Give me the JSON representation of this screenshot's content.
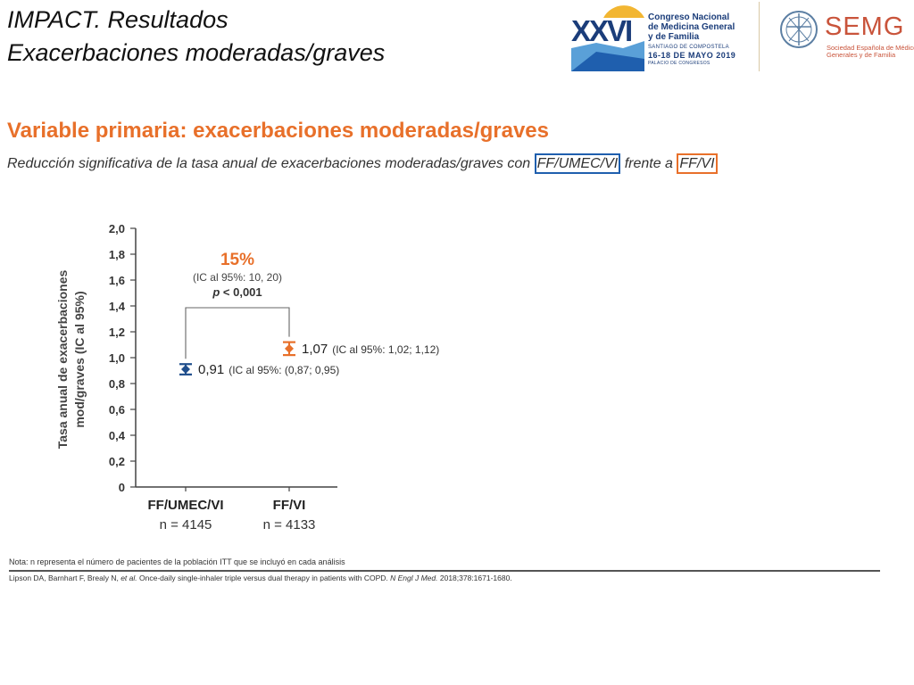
{
  "header": {
    "title_line1": "IMPACT. Resultados",
    "title_line2": "Exacerbaciones moderadas/graves"
  },
  "logos": {
    "congress": {
      "numeral": "XXVI",
      "name_line1": "Congreso Nacional",
      "name_line2": "de Medicina General",
      "name_line3": "y de Familia",
      "city": "SANTIAGO DE COMPOSTELA",
      "dates": "16-18 DE MAYO 2019",
      "venue": "PALACIO DE CONGRESOS"
    },
    "semg": {
      "mark": "SEMG",
      "subtitle_line1": "Sociedad Española de Médicos",
      "subtitle_line2": "Generales y de Familia"
    }
  },
  "section_heading": "Variable primaria: exacerbaciones moderadas/graves",
  "subtitle": {
    "prefix": "Reducción significativa de la tasa anual de exacerbaciones moderadas/graves con ",
    "highlight1": "FF/UMEC/VI",
    "middle": " frente a ",
    "highlight2": "FF/VI"
  },
  "chart_data": {
    "type": "scatter",
    "ylabel_line1": "Tasa anual de exacerbaciones",
    "ylabel_line2": "mod/graves (IC al 95%)",
    "ylim": [
      0,
      2.0
    ],
    "yticks": [
      "0",
      "0,2",
      "0,4",
      "0,6",
      "0,8",
      "1,0",
      "1,2",
      "1,4",
      "1,6",
      "1,8",
      "2,0"
    ],
    "categories": [
      "FF/UMEC/VI",
      "FF/VI"
    ],
    "n_labels": [
      "n = 4145",
      "n = 4133"
    ],
    "points": [
      {
        "value": 0.91,
        "ci_low": 0.87,
        "ci_high": 0.95,
        "value_label": "0,91",
        "ci_label": "(IC al 95%: (0,87; 0,95)",
        "color": "#1f4e8c"
      },
      {
        "value": 1.07,
        "ci_low": 1.02,
        "ci_high": 1.12,
        "value_label": "1,07",
        "ci_label": "(IC al 95%: 1,02; 1,12)",
        "color": "#e8702a"
      }
    ],
    "annotation": {
      "percent": "15%",
      "ci": "(IC al 95%:  10, 20)",
      "p_label": "p",
      "p_value": " < 0,001"
    },
    "grid": false
  },
  "footer": {
    "note": "Nota: n representa el número de pacientes de la población ITT que se incluyó en cada análisis",
    "reference_authors": "Lipson DA, Barnhart F, Brealy N, ",
    "reference_etal": "et al.",
    "reference_title": " Once-daily single-inhaler triple versus dual therapy in patients with COPD. ",
    "reference_journal": "N Engl J Med.",
    "reference_year": " 2018;378:1671-1680."
  }
}
